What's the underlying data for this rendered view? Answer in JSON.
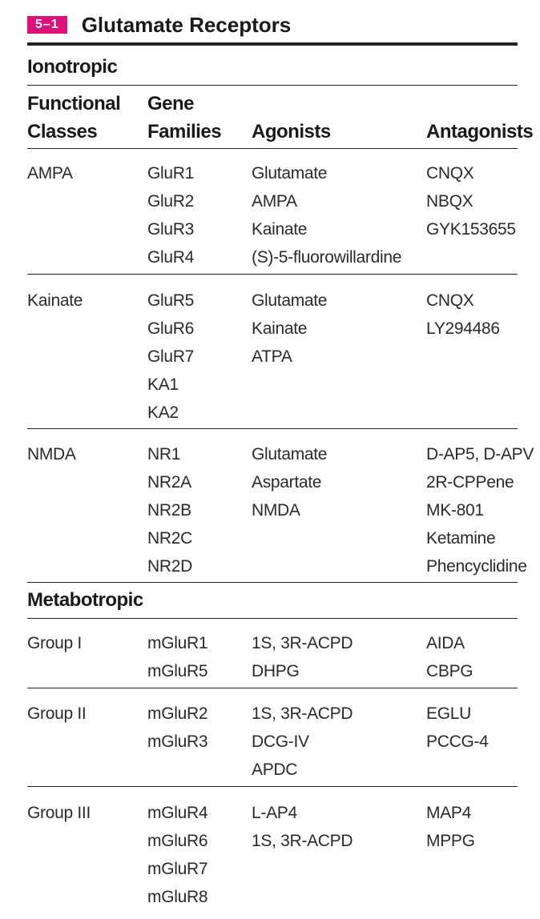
{
  "table": {
    "number": "5–1",
    "title": "Glutamate Receptors",
    "headers": {
      "functional_classes": [
        "Functional",
        "Classes"
      ],
      "gene_families": [
        "Gene",
        "Families"
      ],
      "agonists": "Agonists",
      "antagonists": "Antagonists"
    },
    "sections": [
      {
        "title": "Ionotropic",
        "rows": [
          {
            "class": "AMPA",
            "genes": [
              "GluR1",
              "GluR2",
              "GluR3",
              "GluR4"
            ],
            "agonists": [
              "Glutamate",
              "AMPA",
              "Kainate",
              "(S)-5-fluorowillardine"
            ],
            "antagonists": [
              "CNQX",
              "NBQX",
              "GYK153655"
            ]
          },
          {
            "class": "Kainate",
            "genes": [
              "GluR5",
              "GluR6",
              "GluR7",
              "KA1",
              "KA2"
            ],
            "agonists": [
              "Glutamate",
              "Kainate",
              "ATPA"
            ],
            "antagonists": [
              "CNQX",
              "LY294486"
            ]
          },
          {
            "class": "NMDA",
            "genes": [
              "NR1",
              "NR2A",
              "NR2B",
              "NR2C",
              "NR2D"
            ],
            "agonists": [
              "Glutamate",
              "Aspartate",
              "NMDA"
            ],
            "antagonists": [
              "D-AP5, D-APV",
              "2R-CPPene",
              "MK-801",
              "Ketamine",
              "Phencyclidine"
            ]
          }
        ]
      },
      {
        "title": "Metabotropic",
        "rows": [
          {
            "class": "Group I",
            "genes": [
              "mGluR1",
              "mGluR5"
            ],
            "agonists": [
              "1S, 3R-ACPD",
              "DHPG"
            ],
            "antagonists": [
              "AIDA",
              "CBPG"
            ]
          },
          {
            "class": "Group II",
            "genes": [
              "mGluR2",
              "mGluR3"
            ],
            "agonists": [
              "1S, 3R-ACPD",
              "DCG-IV",
              "APDC"
            ],
            "antagonists": [
              "EGLU",
              "PCCG-4"
            ]
          },
          {
            "class": "Group III",
            "genes": [
              "mGluR4",
              "mGluR6",
              "mGluR7",
              "mGluR8"
            ],
            "agonists": [
              "L-AP4",
              "1S, 3R-ACPD"
            ],
            "antagonists": [
              "MAP4",
              "MPPG"
            ]
          }
        ]
      }
    ],
    "colors": {
      "badge": "#e0107a",
      "rule": "#222222"
    }
  }
}
